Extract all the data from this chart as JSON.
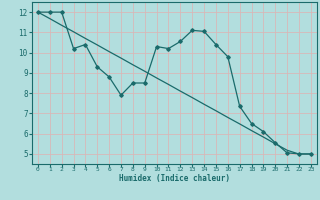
{
  "xlabel": "Humidex (Indice chaleur)",
  "background_color": "#b2dede",
  "grid_color": "#d8b8b8",
  "line_color": "#1a6b6b",
  "x_curvy": [
    0,
    1,
    2,
    3,
    4,
    5,
    6,
    7,
    8,
    9,
    10,
    11,
    12,
    13,
    14,
    15,
    16,
    17,
    18,
    19,
    20,
    21,
    22,
    23
  ],
  "y_curvy": [
    12,
    12,
    12,
    10.2,
    10.4,
    9.3,
    8.8,
    7.9,
    8.5,
    8.5,
    10.3,
    10.2,
    10.55,
    11.1,
    11.05,
    10.4,
    9.8,
    7.35,
    6.5,
    6.1,
    5.55,
    5.05,
    5.0,
    5.0
  ],
  "x_linear": [
    0,
    1,
    2,
    3,
    4,
    5,
    6,
    7,
    8,
    9,
    10,
    11,
    12,
    13,
    14,
    15,
    16,
    17,
    18,
    19,
    20,
    21,
    22,
    23
  ],
  "y_linear": [
    12.0,
    11.68,
    11.35,
    11.03,
    10.7,
    10.38,
    10.05,
    9.73,
    9.4,
    9.08,
    8.75,
    8.43,
    8.1,
    7.78,
    7.45,
    7.13,
    6.8,
    6.48,
    6.15,
    5.83,
    5.5,
    5.18,
    4.99,
    4.99
  ],
  "xlim": [
    -0.5,
    23.5
  ],
  "ylim": [
    4.5,
    12.5
  ],
  "yticks": [
    5,
    6,
    7,
    8,
    9,
    10,
    11,
    12
  ],
  "xticks": [
    0,
    1,
    2,
    3,
    4,
    5,
    6,
    7,
    8,
    9,
    10,
    11,
    12,
    13,
    14,
    15,
    16,
    17,
    18,
    19,
    20,
    21,
    22,
    23
  ]
}
